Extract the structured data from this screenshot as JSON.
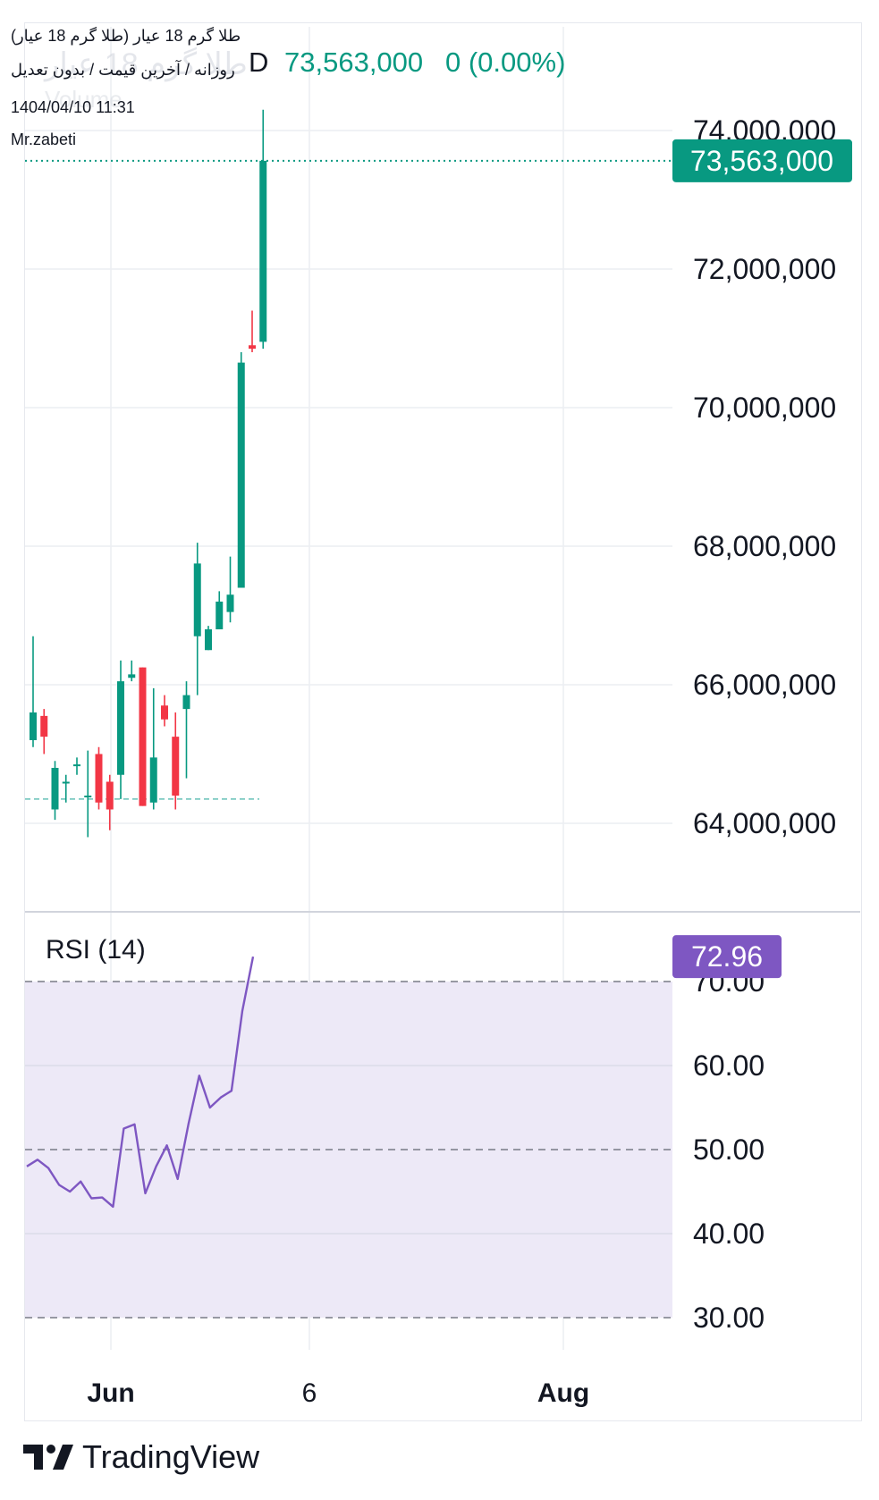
{
  "header": {
    "title": "طلا گرم 18 عیار (طلا گرم 18 عیار)",
    "subtitle": "روزانه / آخرین قیمت / بدون تعدیل",
    "datetime": "1404/04/10 11:31",
    "author": "Mr.zabeti",
    "ghost_symbol": "طلا گرم 18 عیار",
    "ghost_volume": "Volume",
    "interval_suffix": "D",
    "last_price": "73,563,000",
    "change": "0 (0.00%)"
  },
  "colors": {
    "up": "#089981",
    "down": "#f23645",
    "rsi_line": "#7e57c2",
    "rsi_band": "#ede9f7",
    "grid": "#eceef2",
    "text": "#131722"
  },
  "chart_data": [
    {
      "type": "candlestick",
      "title": "طلا گرم 18 عیار",
      "interval": "1D",
      "ylim": [
        62800000,
        75000000
      ],
      "y_ticks": [
        "64,000,000",
        "66,000,000",
        "68,000,000",
        "70,000,000",
        "72,000,000",
        "74,000,000"
      ],
      "y_tick_values": [
        64000000,
        66000000,
        68000000,
        70000000,
        72000000,
        74000000
      ],
      "x_ticks": [
        "Jun",
        "6",
        "Aug"
      ],
      "last_price": 73563000,
      "last_price_label": "73,563,000",
      "reference_line": 64350000,
      "candles": [
        {
          "o": 65200000,
          "h": 66700000,
          "l": 65100000,
          "c": 65600000
        },
        {
          "o": 65550000,
          "h": 65650000,
          "l": 65000000,
          "c": 65250000
        },
        {
          "o": 64200000,
          "h": 64900000,
          "l": 64050000,
          "c": 64800000
        },
        {
          "o": 64600000,
          "h": 64700000,
          "l": 64300000,
          "c": 64600000
        },
        {
          "o": 64850000,
          "h": 64950000,
          "l": 64700000,
          "c": 64850000
        },
        {
          "o": 64400000,
          "h": 65050000,
          "l": 63800000,
          "c": 64400000
        },
        {
          "o": 65000000,
          "h": 65100000,
          "l": 64200000,
          "c": 64300000
        },
        {
          "o": 64600000,
          "h": 64700000,
          "l": 63900000,
          "c": 64200000
        },
        {
          "o": 64700000,
          "h": 66350000,
          "l": 64350000,
          "c": 66050000
        },
        {
          "o": 66100000,
          "h": 66350000,
          "l": 66050000,
          "c": 66150000
        },
        {
          "o": 66250000,
          "h": 66250000,
          "l": 64250000,
          "c": 64250000
        },
        {
          "o": 64300000,
          "h": 65950000,
          "l": 64200000,
          "c": 64950000
        },
        {
          "o": 65700000,
          "h": 65850000,
          "l": 65400000,
          "c": 65500000
        },
        {
          "o": 65250000,
          "h": 65600000,
          "l": 64200000,
          "c": 64400000
        },
        {
          "o": 65650000,
          "h": 66050000,
          "l": 64650000,
          "c": 65850000
        },
        {
          "o": 66700000,
          "h": 68050000,
          "l": 65850000,
          "c": 67750000
        },
        {
          "o": 66500000,
          "h": 66850000,
          "l": 66500000,
          "c": 66800000
        },
        {
          "o": 66800000,
          "h": 67350000,
          "l": 66800000,
          "c": 67200000
        },
        {
          "o": 67050000,
          "h": 67850000,
          "l": 66900000,
          "c": 67300000
        },
        {
          "o": 67400000,
          "h": 70800000,
          "l": 67400000,
          "c": 70650000
        },
        {
          "o": 70900000,
          "h": 71400000,
          "l": 70800000,
          "c": 70850000
        },
        {
          "o": 70950000,
          "h": 74300000,
          "l": 70850000,
          "c": 73563000
        }
      ]
    },
    {
      "type": "line",
      "title": "RSI (14)",
      "ylim": [
        27,
        77
      ],
      "y_ticks": [
        "30.00",
        "40.00",
        "50.00",
        "60.00",
        "70.00"
      ],
      "y_tick_values": [
        30,
        40,
        50,
        60,
        70
      ],
      "band": [
        30,
        70
      ],
      "dashed_levels": [
        30,
        50,
        70
      ],
      "last_value": 72.96,
      "last_value_label": "72.96",
      "values": [
        48.0,
        48.8,
        47.8,
        45.8,
        45.0,
        46.2,
        44.2,
        44.3,
        43.2,
        52.5,
        53.0,
        44.8,
        48.0,
        50.5,
        46.5,
        53.0,
        58.8,
        55.0,
        56.2,
        57.0,
        66.5,
        72.96
      ]
    }
  ]
}
